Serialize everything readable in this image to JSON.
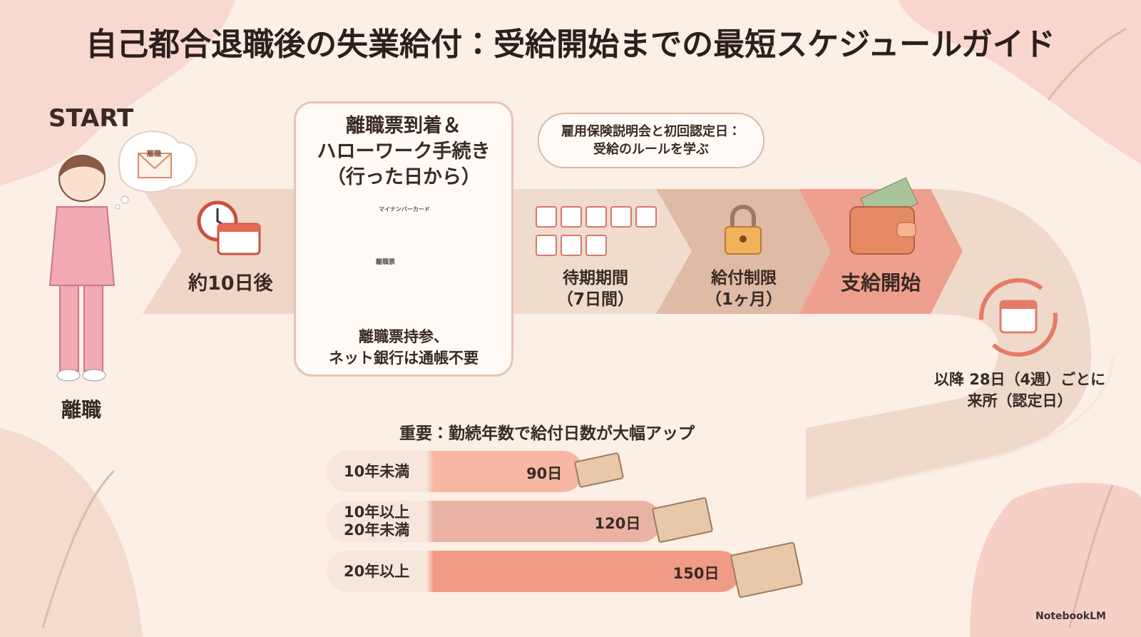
{
  "title": "自己都合退職後の失業給付：受給開始までの最短スケジュールガイド",
  "start_label": "START",
  "start_caption": "離職",
  "envelope_label": "離職",
  "step1_label": "約10日後",
  "card": {
    "title_lines": [
      "離職票到着＆",
      "ハローワーク手続き",
      "（行った日から）"
    ],
    "id_card_label": "マイナンバーカード",
    "doc_label": "離職票",
    "note_lines": [
      "離職票持参、",
      "ネット銀行は通帳不要"
    ]
  },
  "callout_lines": [
    "雇用保険説明会と初回認定日：",
    "受給のルールを学ぶ"
  ],
  "waiting_lines": [
    "待期期間",
    "（7日間）"
  ],
  "restriction_lines": [
    "給付制限",
    "（1ヶ月）"
  ],
  "payment_label": "支給開始",
  "recurring_lines": [
    "以降 28日（4週）ごとに",
    "来所（認定日）"
  ],
  "benefits": {
    "title": "重要：勤続年数で給付日数が大幅アップ",
    "rows": [
      {
        "label_lines": [
          "10年未満"
        ],
        "days": 90,
        "days_label": "90日"
      },
      {
        "label_lines": [
          "10年以上",
          "20年未満"
        ],
        "days": 120,
        "days_label": "120日"
      },
      {
        "label_lines": [
          "20年以上"
        ],
        "days": 150,
        "days_label": "150日"
      }
    ]
  },
  "brand": "NotebookLM"
}
